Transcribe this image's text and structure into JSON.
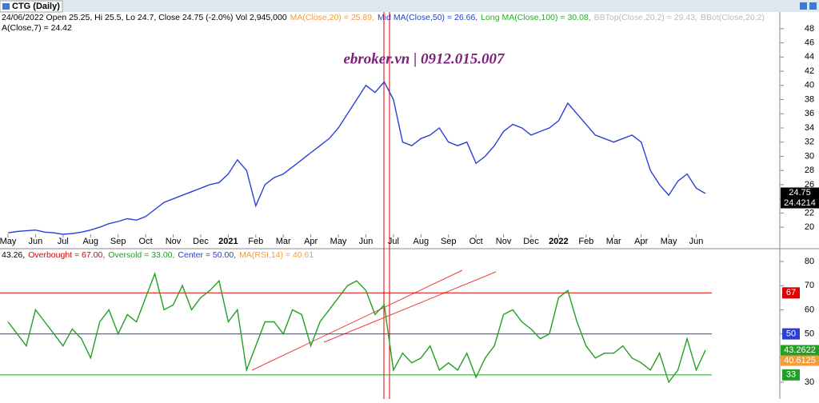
{
  "chart_data": [
    {
      "type": "line",
      "title": "CTG (Daily)",
      "watermark": "ebroker.vn | 0912.015.007",
      "info": [
        {
          "text": "24/06/2022 Open 25.25, Hi 25.5, Lo 24.7, Close 24.75 (-2.0%) Vol 2,945,000",
          "color": "#000000"
        },
        {
          "text": "MA(Close,20) = 25.89,",
          "color": "#f39c3c"
        },
        {
          "text": "Mid MA(Close,50) = 26.66,",
          "color": "#1f3fd0"
        },
        {
          "text": "Long MA(Close,100) = 30.08,",
          "color": "#22b022"
        },
        {
          "text": "BBTop(Close,20,2) = 29.43,",
          "color": "#bbbbbb"
        },
        {
          "text": "BBot(Close,20,2)",
          "color": "#bbbbbb"
        }
      ],
      "info2": "A(Close,7) = 24.42",
      "last_labels": [
        "24.75",
        "24.4214"
      ],
      "categories": [
        "May",
        null,
        null,
        "Jun",
        null,
        null,
        "Jul",
        null,
        null,
        "Aug",
        null,
        null,
        "Sep",
        null,
        null,
        "Oct",
        null,
        null,
        "Nov",
        null,
        null,
        "Dec",
        null,
        null,
        "2021",
        null,
        null,
        "Feb",
        null,
        null,
        "Mar",
        null,
        null,
        "Apr",
        null,
        null,
        "May",
        null,
        null,
        "Jun",
        null,
        null,
        "Jul",
        null,
        null,
        "Aug",
        null,
        null,
        "Sep",
        null,
        null,
        "Oct",
        null,
        null,
        "Nov",
        null,
        null,
        "Dec",
        null,
        null,
        "2022",
        null,
        null,
        "Feb",
        null,
        null,
        "Mar",
        null,
        null,
        "Apr",
        null,
        null,
        "May",
        null,
        null,
        "Jun",
        null
      ],
      "series": [
        {
          "name": "Close",
          "color": "#2a3fd8",
          "values": [
            19.2,
            19.4,
            19.5,
            19.6,
            19.3,
            19.2,
            19.0,
            19.1,
            19.3,
            19.6,
            20.0,
            20.5,
            20.8,
            21.2,
            21.0,
            21.5,
            22.5,
            23.5,
            24.0,
            24.5,
            25.0,
            25.5,
            26.0,
            26.3,
            27.5,
            29.5,
            28.0,
            23.0,
            26.0,
            27.0,
            27.5,
            28.5,
            29.5,
            30.5,
            31.5,
            32.5,
            34.0,
            36.0,
            38.0,
            40.0,
            39.0,
            40.5,
            38.0,
            32.0,
            31.5,
            32.5,
            33.0,
            34.0,
            32.0,
            31.5,
            32.0,
            29.0,
            30.0,
            31.5,
            33.5,
            34.5,
            34.0,
            33.0,
            33.5,
            34.0,
            35.0,
            37.5,
            36.0,
            34.5,
            33.0,
            32.5,
            32.0,
            32.5,
            33.0,
            32.0,
            28.0,
            26.0,
            24.5,
            26.5,
            27.5,
            25.5,
            24.75
          ]
        }
      ],
      "ylim": [
        19,
        49
      ],
      "yticks": [
        20,
        22,
        24,
        26,
        28,
        30,
        32,
        34,
        36,
        38,
        40,
        42,
        44,
        46,
        48
      ]
    },
    {
      "type": "line",
      "info": [
        {
          "text": "43.26,",
          "color": "#000000"
        },
        {
          "text": "Overbought = 67.00,",
          "color": "#e00000"
        },
        {
          "text": "Oversold = 33.00,",
          "color": "#22a022"
        },
        {
          "text": "Center = 50.00,",
          "color": "#1f3fd0"
        },
        {
          "text": "MA(RSI,14) = 40.61",
          "color": "#f39c3c"
        }
      ],
      "levels": [
        {
          "value": 67,
          "color": "#e00000"
        },
        {
          "value": 50,
          "color": "#2a3fd8"
        },
        {
          "value": 33,
          "color": "#22a022"
        }
      ],
      "last_labels": [
        {
          "label": "43.2622",
          "color": "#22a022"
        },
        {
          "label": "40.6125",
          "color": "#f39c3c"
        }
      ],
      "series": [
        {
          "name": "RSI",
          "color": "#22a022",
          "values": [
            55,
            50,
            45,
            60,
            55,
            50,
            45,
            52,
            48,
            40,
            55,
            60,
            50,
            58,
            55,
            65,
            75,
            60,
            62,
            70,
            60,
            65,
            68,
            72,
            55,
            60,
            35,
            45,
            55,
            55,
            50,
            60,
            58,
            45,
            55,
            60,
            65,
            70,
            72,
            68,
            58,
            62,
            35,
            42,
            38,
            40,
            45,
            35,
            38,
            35,
            42,
            32,
            40,
            45,
            58,
            60,
            55,
            52,
            48,
            50,
            65,
            68,
            55,
            45,
            40,
            42,
            42,
            45,
            40,
            38,
            35,
            42,
            30,
            35,
            48,
            35,
            43.26
          ]
        }
      ],
      "ylim": [
        23,
        85
      ],
      "yticks": [
        30,
        40,
        50,
        60,
        70,
        80
      ]
    }
  ]
}
